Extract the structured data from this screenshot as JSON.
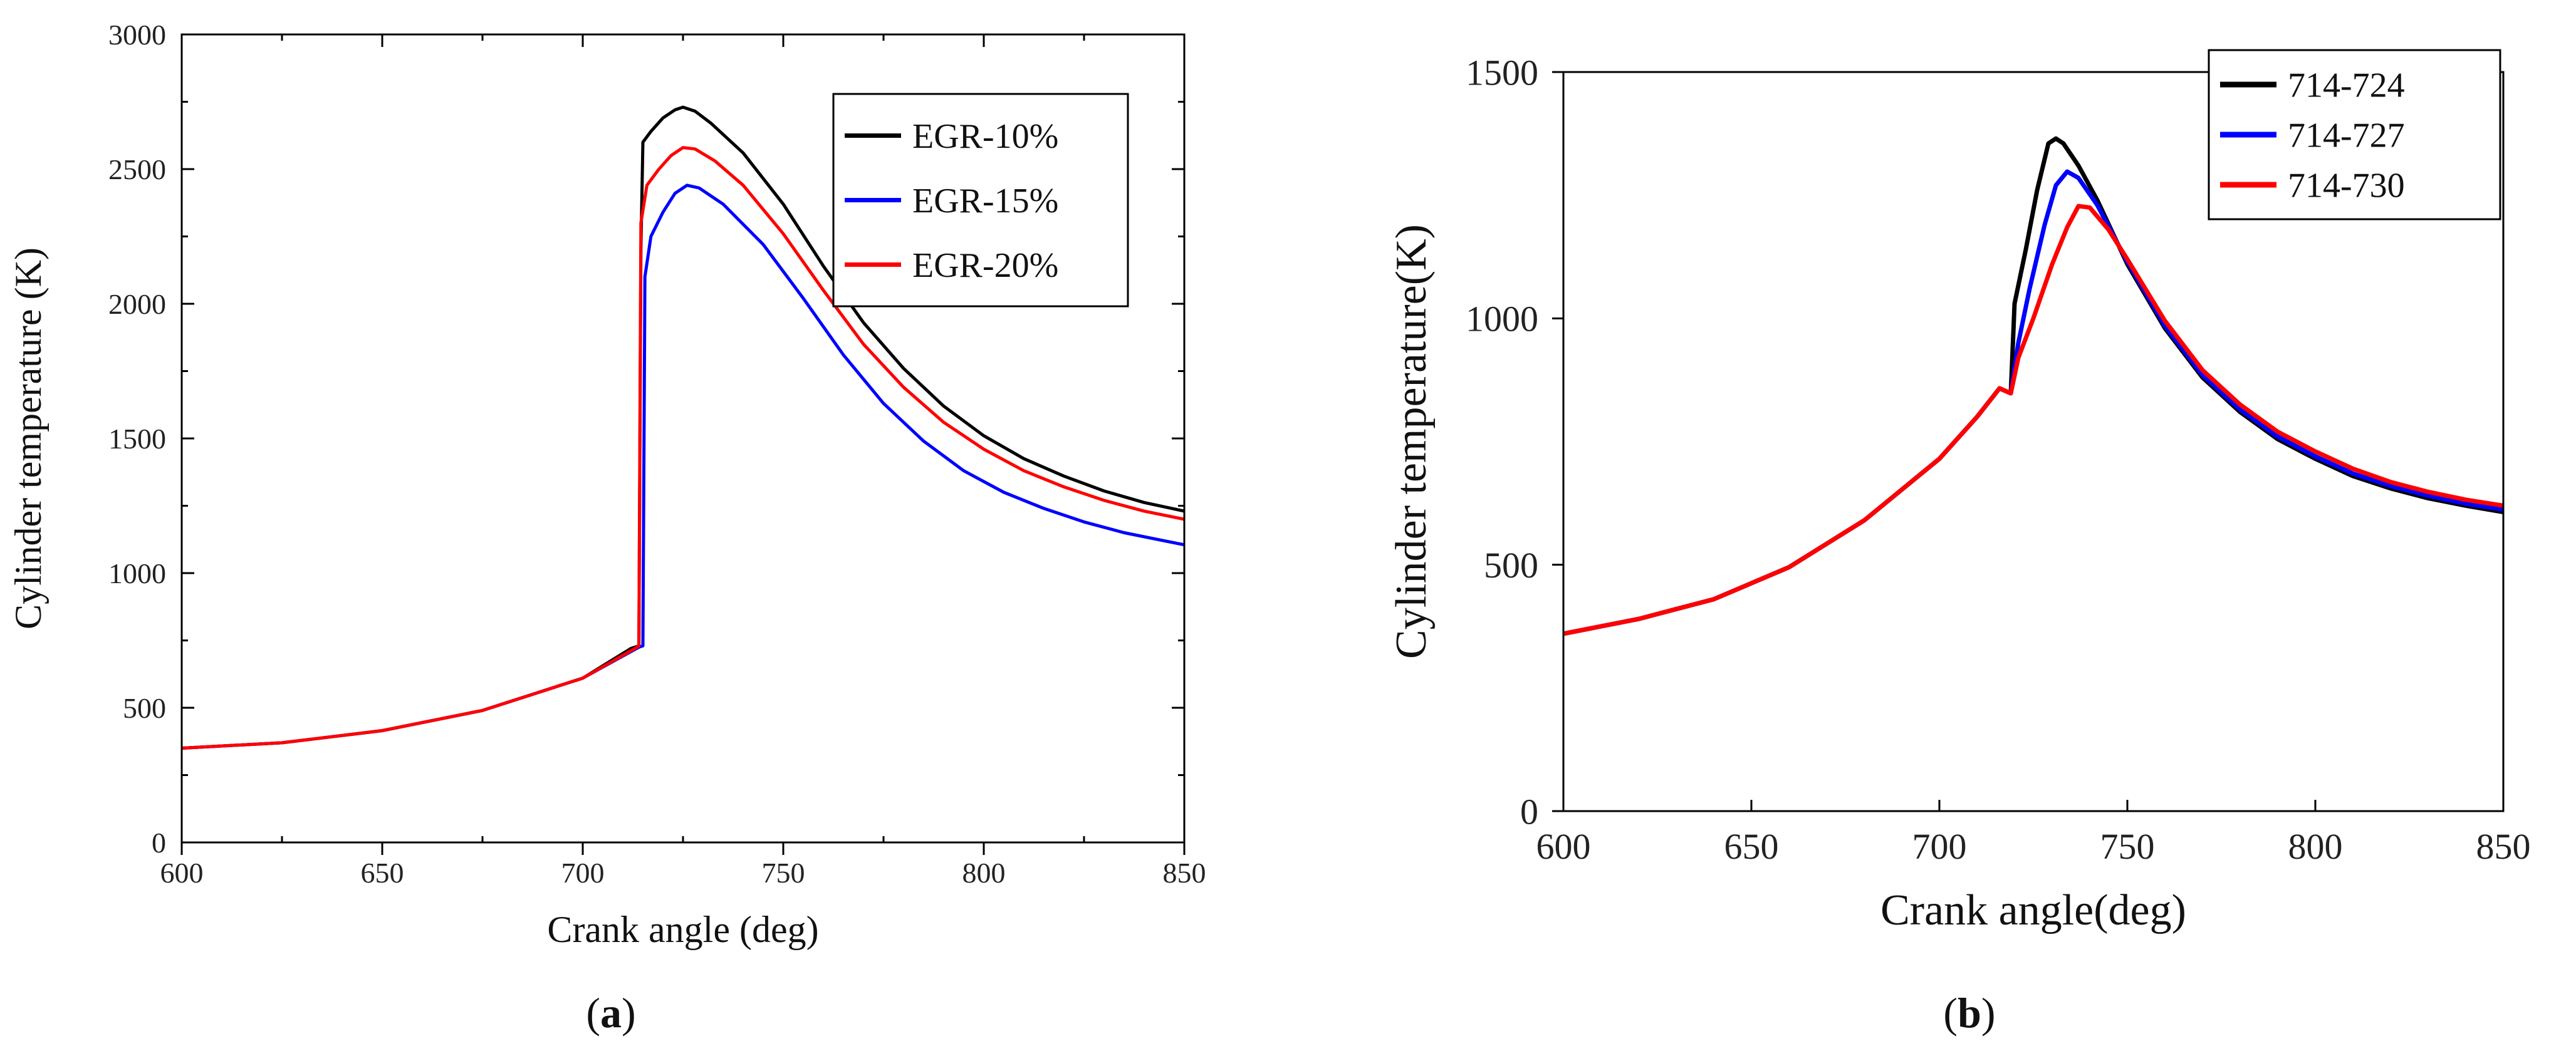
{
  "chart_data": [
    {
      "type": "line",
      "panel_label": "a",
      "xlabel": "Crank angle (deg)",
      "ylabel": "Cylinder temperature (K)",
      "xlim": [
        600,
        850
      ],
      "ylim": [
        0,
        3000
      ],
      "xticks": [
        600,
        650,
        700,
        750,
        800,
        850
      ],
      "yticks": [
        0,
        500,
        1000,
        1500,
        2000,
        2500,
        3000
      ],
      "grid": false,
      "legend_position": "top-right",
      "series": [
        {
          "name": "EGR-10%",
          "color": "#000000",
          "points": [
            [
              600,
              350
            ],
            [
              625,
              370
            ],
            [
              650,
              415
            ],
            [
              675,
              490
            ],
            [
              700,
              610
            ],
            [
              712,
              720
            ],
            [
              714,
              730
            ],
            [
              714.5,
              2200
            ],
            [
              715,
              2600
            ],
            [
              717,
              2640
            ],
            [
              720,
              2690
            ],
            [
              723,
              2720
            ],
            [
              725,
              2730
            ],
            [
              728,
              2715
            ],
            [
              732,
              2670
            ],
            [
              740,
              2560
            ],
            [
              750,
              2370
            ],
            [
              760,
              2140
            ],
            [
              770,
              1930
            ],
            [
              780,
              1760
            ],
            [
              790,
              1620
            ],
            [
              800,
              1510
            ],
            [
              810,
              1425
            ],
            [
              820,
              1360
            ],
            [
              830,
              1305
            ],
            [
              840,
              1262
            ],
            [
              850,
              1230
            ]
          ]
        },
        {
          "name": "EGR-15%",
          "color": "#0000ff",
          "points": [
            [
              600,
              350
            ],
            [
              625,
              370
            ],
            [
              650,
              415
            ],
            [
              675,
              490
            ],
            [
              700,
              610
            ],
            [
              714,
              725
            ],
            [
              715,
              730
            ],
            [
              715.5,
              2100
            ],
            [
              717,
              2250
            ],
            [
              720,
              2340
            ],
            [
              723,
              2410
            ],
            [
              726,
              2440
            ],
            [
              729,
              2430
            ],
            [
              735,
              2370
            ],
            [
              745,
              2220
            ],
            [
              755,
              2020
            ],
            [
              765,
              1810
            ],
            [
              775,
              1630
            ],
            [
              785,
              1490
            ],
            [
              795,
              1380
            ],
            [
              805,
              1300
            ],
            [
              815,
              1240
            ],
            [
              825,
              1190
            ],
            [
              835,
              1150
            ],
            [
              845,
              1120
            ],
            [
              850,
              1105
            ]
          ]
        },
        {
          "name": "EGR-20%",
          "color": "#ff0000",
          "points": [
            [
              600,
              350
            ],
            [
              625,
              370
            ],
            [
              650,
              415
            ],
            [
              675,
              490
            ],
            [
              700,
              610
            ],
            [
              713,
              720
            ],
            [
              714,
              730
            ],
            [
              714.5,
              2300
            ],
            [
              716,
              2440
            ],
            [
              719,
              2500
            ],
            [
              722,
              2550
            ],
            [
              725,
              2580
            ],
            [
              728,
              2575
            ],
            [
              733,
              2530
            ],
            [
              740,
              2440
            ],
            [
              750,
              2260
            ],
            [
              760,
              2050
            ],
            [
              770,
              1850
            ],
            [
              780,
              1690
            ],
            [
              790,
              1560
            ],
            [
              800,
              1460
            ],
            [
              810,
              1380
            ],
            [
              820,
              1320
            ],
            [
              830,
              1270
            ],
            [
              840,
              1230
            ],
            [
              850,
              1200
            ]
          ]
        }
      ]
    },
    {
      "type": "line",
      "panel_label": "b",
      "xlabel": "Crank angle(deg)",
      "ylabel": "Cylinder temperature(K)",
      "xlim": [
        600,
        850
      ],
      "ylim": [
        0,
        1500
      ],
      "xticks": [
        600,
        650,
        700,
        750,
        800,
        850
      ],
      "yticks": [
        0,
        500,
        1000,
        1500
      ],
      "grid": false,
      "legend_position": "top-right",
      "series": [
        {
          "name": "714-724",
          "color": "#000000",
          "points": [
            [
              600,
              360
            ],
            [
              620,
              390
            ],
            [
              640,
              430
            ],
            [
              660,
              495
            ],
            [
              680,
              590
            ],
            [
              700,
              715
            ],
            [
              710,
              800
            ],
            [
              716,
              858
            ],
            [
              719,
              848
            ],
            [
              720,
              1030
            ],
            [
              723,
              1140
            ],
            [
              726,
              1260
            ],
            [
              729,
              1355
            ],
            [
              731,
              1365
            ],
            [
              733,
              1355
            ],
            [
              737,
              1310
            ],
            [
              742,
              1240
            ],
            [
              750,
              1110
            ],
            [
              760,
              980
            ],
            [
              770,
              880
            ],
            [
              780,
              810
            ],
            [
              790,
              755
            ],
            [
              800,
              715
            ],
            [
              810,
              680
            ],
            [
              820,
              655
            ],
            [
              830,
              635
            ],
            [
              840,
              620
            ],
            [
              850,
              607
            ]
          ]
        },
        {
          "name": "714-727",
          "color": "#0000ff",
          "points": [
            [
              600,
              360
            ],
            [
              620,
              390
            ],
            [
              640,
              430
            ],
            [
              660,
              495
            ],
            [
              680,
              590
            ],
            [
              700,
              715
            ],
            [
              710,
              800
            ],
            [
              716,
              858
            ],
            [
              719,
              848
            ],
            [
              721,
              950
            ],
            [
              724,
              1060
            ],
            [
              728,
              1190
            ],
            [
              731,
              1270
            ],
            [
              734,
              1298
            ],
            [
              737,
              1285
            ],
            [
              742,
              1230
            ],
            [
              750,
              1115
            ],
            [
              760,
              985
            ],
            [
              770,
              885
            ],
            [
              780,
              815
            ],
            [
              790,
              760
            ],
            [
              800,
              720
            ],
            [
              810,
              685
            ],
            [
              820,
              660
            ],
            [
              830,
              640
            ],
            [
              840,
              624
            ],
            [
              850,
              612
            ]
          ]
        },
        {
          "name": "714-730",
          "color": "#ff0000",
          "points": [
            [
              600,
              360
            ],
            [
              620,
              390
            ],
            [
              640,
              430
            ],
            [
              660,
              495
            ],
            [
              680,
              590
            ],
            [
              700,
              715
            ],
            [
              710,
              800
            ],
            [
              716,
              858
            ],
            [
              719,
              848
            ],
            [
              721,
              920
            ],
            [
              725,
              1000
            ],
            [
              730,
              1110
            ],
            [
              734,
              1185
            ],
            [
              737,
              1228
            ],
            [
              740,
              1225
            ],
            [
              745,
              1180
            ],
            [
              750,
              1120
            ],
            [
              760,
              995
            ],
            [
              770,
              895
            ],
            [
              780,
              825
            ],
            [
              790,
              770
            ],
            [
              800,
              730
            ],
            [
              810,
              695
            ],
            [
              820,
              668
            ],
            [
              830,
              648
            ],
            [
              840,
              632
            ],
            [
              850,
              620
            ]
          ]
        }
      ]
    }
  ],
  "captions": {
    "a": "a",
    "b": "b"
  }
}
